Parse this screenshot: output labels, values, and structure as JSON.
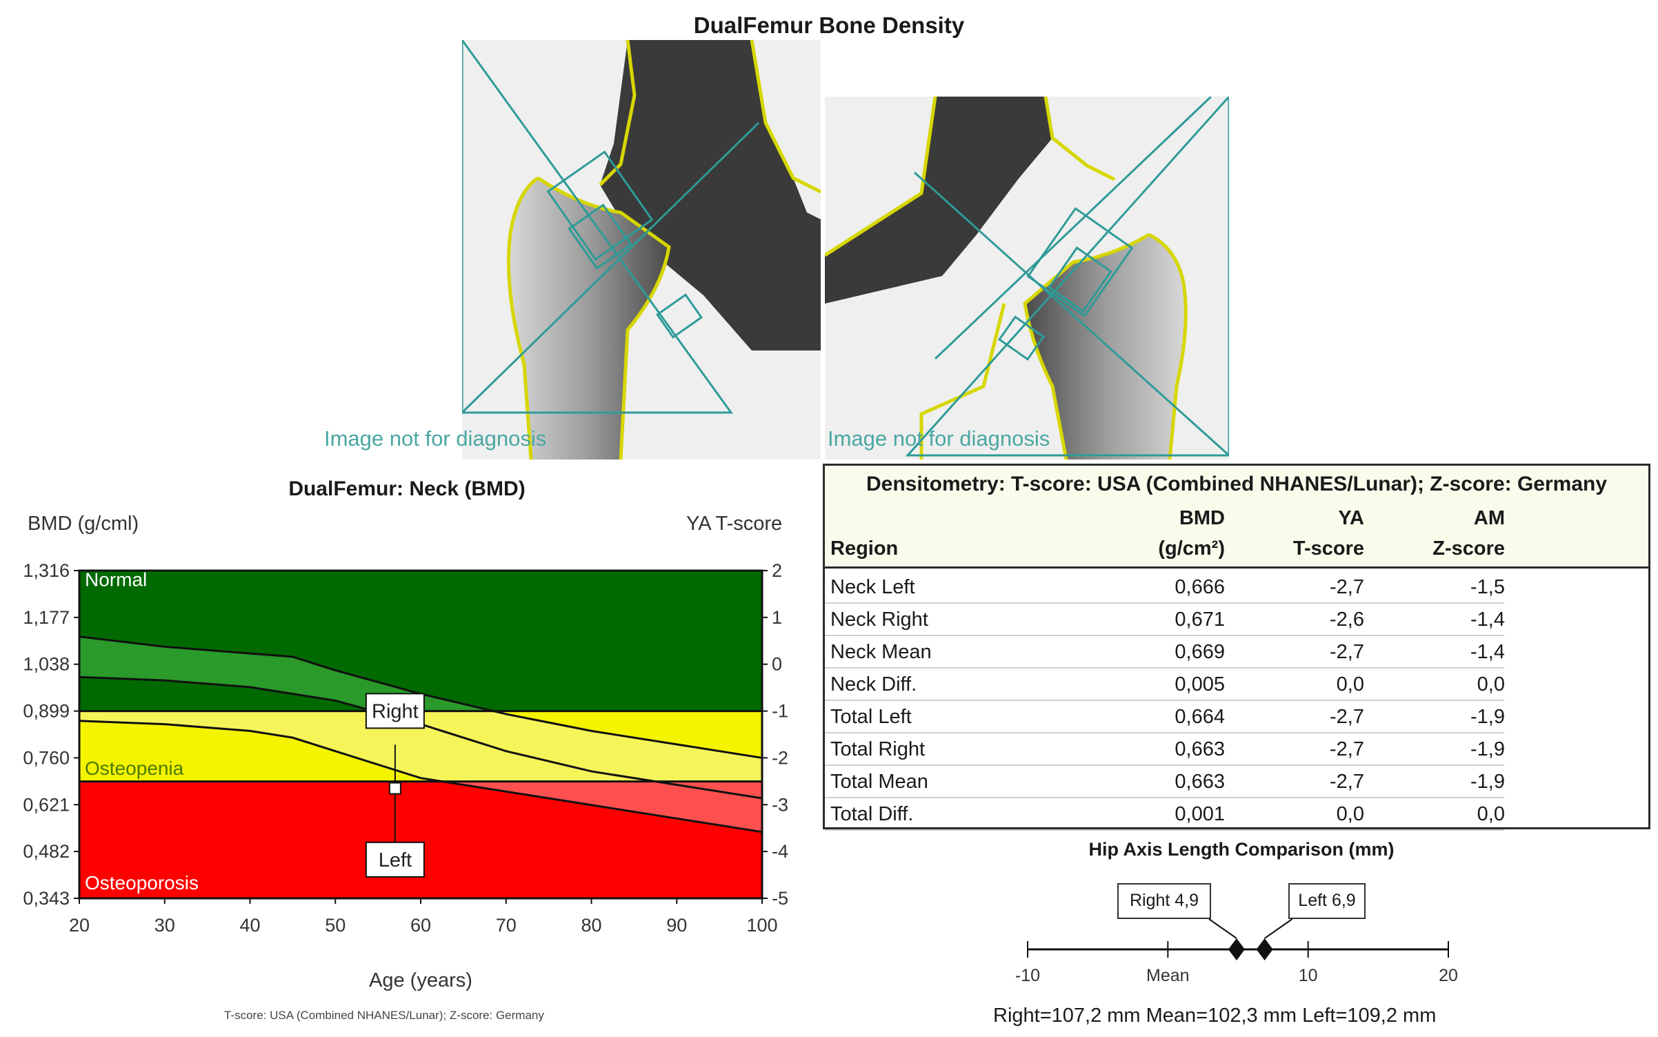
{
  "header": {
    "title": "DualFemur Bone Density"
  },
  "images": {
    "diagnosis_note_left": "Image not for diagnosis",
    "diagnosis_note_right": "Image not for diagnosis"
  },
  "chart": {
    "title": "DualFemur: Neck (BMD)",
    "y_left_label": "BMD (g/cml)",
    "y_right_label": "YA T-score",
    "x_label": "Age (years)",
    "zones": {
      "normal": "Normal",
      "osteopenia": "Osteopenia",
      "osteoporosis": "Osteoporosis"
    },
    "markers": {
      "right": "Right",
      "left": "Left"
    },
    "footnote": "T-score: USA (Combined NHANES/Lunar); Z-score: Germany",
    "colors": {
      "normal": "#006a00",
      "normal_band": "#2a9a2a",
      "osteopenia": "#f4f400",
      "osteopenia_band": "#f5f55a",
      "osteoporosis": "#ff0000",
      "osteoporosis_band": "#ff5050"
    }
  },
  "chart_data": {
    "type": "line",
    "title": "DualFemur: Neck (BMD)",
    "xlabel": "Age (years)",
    "ylabel": "BMD (g/cml)",
    "y2label": "YA T-score",
    "xlim": [
      20,
      100
    ],
    "ylim": [
      0.343,
      1.316
    ],
    "y2lim": [
      -5,
      2
    ],
    "x_ticks": [
      "20",
      "30",
      "40",
      "50",
      "60",
      "70",
      "80",
      "90",
      "100"
    ],
    "y_ticks": [
      "1,316",
      "1,177",
      "1,038",
      "0,899",
      "0,760",
      "0,621",
      "0,482",
      "0,343"
    ],
    "y2_ticks": [
      "2",
      "1",
      "0",
      "-1",
      "-2",
      "-3",
      "-4",
      "-5"
    ],
    "zones": [
      {
        "name": "Normal",
        "from": 0.899,
        "to": 1.316
      },
      {
        "name": "Osteopenia",
        "from": 0.69,
        "to": 0.899
      },
      {
        "name": "Osteoporosis",
        "from": 0.343,
        "to": 0.69
      }
    ],
    "series": [
      {
        "x": [
          20,
          30,
          40,
          45,
          50,
          60,
          70,
          80,
          90,
          100
        ],
        "values": [
          1.12,
          1.09,
          1.07,
          1.06,
          1.02,
          0.95,
          0.89,
          0.84,
          0.8,
          0.76
        ]
      },
      {
        "x": [
          20,
          30,
          40,
          50,
          60,
          70,
          80,
          90,
          100
        ],
        "values": [
          1.0,
          0.99,
          0.97,
          0.93,
          0.86,
          0.78,
          0.72,
          0.68,
          0.64
        ]
      },
      {
        "x": [
          20,
          30,
          40,
          45,
          50,
          60,
          70,
          80,
          90,
          100
        ],
        "values": [
          0.87,
          0.86,
          0.84,
          0.82,
          0.78,
          0.7,
          0.66,
          0.62,
          0.58,
          0.54
        ]
      }
    ],
    "points": [
      {
        "name": "Right",
        "x": 57,
        "y": 0.671
      },
      {
        "name": "Left",
        "x": 57,
        "y": 0.666
      }
    ]
  },
  "table": {
    "title": "Densitometry: T-score: USA (Combined NHANES/Lunar); Z-score: Germany",
    "headers": {
      "region": "Region",
      "bmd_top": "BMD",
      "bmd_unit": "(g/cm²)",
      "ya_top": "YA",
      "ya_bottom": "T-score",
      "am_top": "AM",
      "am_bottom": "Z-score"
    },
    "rows": [
      {
        "region": "Neck Left",
        "bmd": "0,666",
        "t": "-2,7",
        "z": "-1,5"
      },
      {
        "region": "Neck Right",
        "bmd": "0,671",
        "t": "-2,6",
        "z": "-1,4"
      },
      {
        "region": "Neck Mean",
        "bmd": "0,669",
        "t": "-2,7",
        "z": "-1,4"
      },
      {
        "region": "Neck Diff.",
        "bmd": "0,005",
        "t": "0,0",
        "z": "0,0"
      },
      {
        "region": "Total Left",
        "bmd": "0,664",
        "t": "-2,7",
        "z": "-1,9"
      },
      {
        "region": "Total Right",
        "bmd": "0,663",
        "t": "-2,7",
        "z": "-1,9"
      },
      {
        "region": "Total Mean",
        "bmd": "0,663",
        "t": "-2,7",
        "z": "-1,9"
      },
      {
        "region": "Total Diff.",
        "bmd": "0,001",
        "t": "0,0",
        "z": "0,0"
      }
    ]
  },
  "hal": {
    "title": "Hip Axis Length Comparison (mm)",
    "right_label": "Right 4,9",
    "left_label": "Left 6,9",
    "right_value": 4.9,
    "left_value": 6.9,
    "scale_min": -10,
    "scale_max": 20,
    "ticks": [
      "-10",
      "Mean",
      "10",
      "20"
    ],
    "summary": "Right=107,2 mm  Mean=102,3 mm  Left=109,2 mm"
  }
}
